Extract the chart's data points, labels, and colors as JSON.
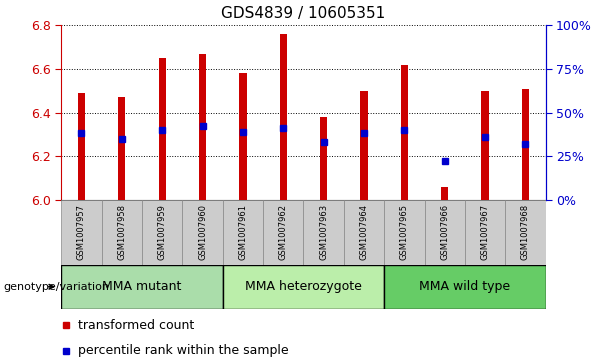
{
  "title": "GDS4839 / 10605351",
  "samples": [
    "GSM1007957",
    "GSM1007958",
    "GSM1007959",
    "GSM1007960",
    "GSM1007961",
    "GSM1007962",
    "GSM1007963",
    "GSM1007964",
    "GSM1007965",
    "GSM1007966",
    "GSM1007967",
    "GSM1007968"
  ],
  "red_values": [
    6.49,
    6.47,
    6.65,
    6.67,
    6.58,
    6.76,
    6.38,
    6.5,
    6.62,
    6.06,
    6.5,
    6.51
  ],
  "blue_values": [
    38,
    35,
    40,
    42,
    39,
    41,
    33,
    38,
    40,
    22,
    36,
    32
  ],
  "y_min": 6.0,
  "y_max": 6.8,
  "y_ticks": [
    6.0,
    6.2,
    6.4,
    6.6,
    6.8
  ],
  "right_y_ticks": [
    0,
    25,
    50,
    75,
    100
  ],
  "right_y_labels": [
    "0%",
    "25%",
    "50%",
    "75%",
    "100%"
  ],
  "bar_color": "#CC0000",
  "blue_color": "#0000CC",
  "group_info": [
    [
      0,
      3,
      "MMA mutant",
      "#AADDAA"
    ],
    [
      4,
      7,
      "MMA heterozygote",
      "#BBEEAA"
    ],
    [
      8,
      11,
      "MMA wild type",
      "#66CC66"
    ]
  ],
  "xlabel_left": "genotype/variation",
  "legend_red": "transformed count",
  "legend_blue": "percentile rank within the sample",
  "bar_width": 0.18,
  "tick_label_color_left": "#CC0000",
  "tick_label_color_right": "#0000CC",
  "title_fontsize": 11,
  "tick_fontsize": 8,
  "label_fontsize": 8,
  "sample_box_color": "#CCCCCC",
  "spine_color": "#000000"
}
